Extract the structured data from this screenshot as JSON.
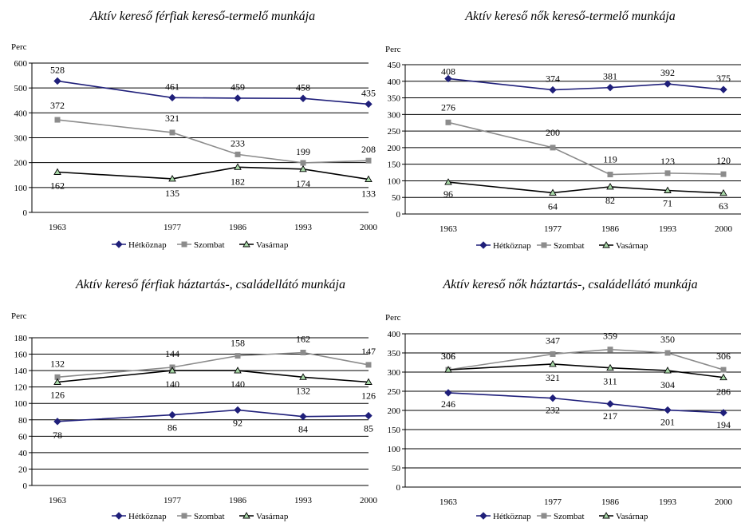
{
  "colors": {
    "Hétköznap": "#1f1f7a",
    "Szombat": "#8c8c8c",
    "Vasárnap": "#000000",
    "vasarnap_marker_fill": "#a8d8a8"
  },
  "chart_data": [
    {
      "type": "line",
      "title": "Aktív kereső férfiak kereső-termelő munkája",
      "ylabel": "Perc",
      "ylim": [
        0,
        600
      ],
      "ystep": 100,
      "grid": true,
      "legend": "bottom",
      "x": [
        "1963",
        "1977",
        "1986",
        "1993",
        "2000"
      ],
      "x_numeric": [
        1963,
        1977,
        1986,
        1993,
        2000
      ],
      "series": [
        {
          "name": "Hétköznap",
          "marker": "diamond",
          "values": [
            528,
            461,
            459,
            458,
            435
          ]
        },
        {
          "name": "Szombat",
          "marker": "square",
          "values": [
            372,
            321,
            233,
            199,
            208
          ]
        },
        {
          "name": "Vasárnap",
          "marker": "triangle",
          "values": [
            162,
            135,
            182,
            174,
            133
          ]
        }
      ]
    },
    {
      "type": "line",
      "title": "Aktív kereső nők kereső-termelő munkája",
      "ylabel": "Perc",
      "ylim": [
        0,
        450
      ],
      "ystep": 50,
      "grid": true,
      "legend": "bottom",
      "x": [
        "1963",
        "1977",
        "1986",
        "1993",
        "2000"
      ],
      "x_numeric": [
        1963,
        1977,
        1986,
        1993,
        2000
      ],
      "series": [
        {
          "name": "Hétköznap",
          "marker": "diamond",
          "values": [
            408,
            374,
            381,
            392,
            375
          ]
        },
        {
          "name": "Szombat",
          "marker": "square",
          "values": [
            276,
            200,
            119,
            123,
            120
          ]
        },
        {
          "name": "Vasárnap",
          "marker": "triangle",
          "values": [
            96,
            64,
            82,
            71,
            63
          ]
        }
      ]
    },
    {
      "type": "line",
      "title": "Aktív kereső férfiak háztartás-, családellátó munkája",
      "ylabel": "Perc",
      "ylim": [
        0,
        180
      ],
      "ystep": 20,
      "grid": true,
      "legend": "bottom",
      "x": [
        "1963",
        "1977",
        "1986",
        "1993",
        "2000"
      ],
      "x_numeric": [
        1963,
        1977,
        1986,
        1993,
        2000
      ],
      "series": [
        {
          "name": "Hétköznap",
          "marker": "diamond",
          "values": [
            78,
            86,
            92,
            84,
            85
          ]
        },
        {
          "name": "Szombat",
          "marker": "square",
          "values": [
            132,
            144,
            158,
            162,
            147
          ]
        },
        {
          "name": "Vasárnap",
          "marker": "triangle",
          "values": [
            126,
            140,
            140,
            132,
            126
          ]
        }
      ]
    },
    {
      "type": "line",
      "title": "Aktív kereső nők háztartás-, családellátó munkája",
      "ylabel": "Perc",
      "ylim": [
        0,
        400
      ],
      "ystep": 50,
      "grid": true,
      "legend": "bottom",
      "x": [
        "1963",
        "1977",
        "1986",
        "1993",
        "2000"
      ],
      "x_numeric": [
        1963,
        1977,
        1986,
        1993,
        2000
      ],
      "series": [
        {
          "name": "Hétköznap",
          "marker": "diamond",
          "values": [
            246,
            232,
            217,
            201,
            194
          ]
        },
        {
          "name": "Szombat",
          "marker": "square",
          "values": [
            306,
            347,
            359,
            350,
            306
          ]
        },
        {
          "name": "Vasárnap",
          "marker": "triangle",
          "values": [
            306,
            321,
            311,
            304,
            286
          ]
        }
      ]
    }
  ]
}
